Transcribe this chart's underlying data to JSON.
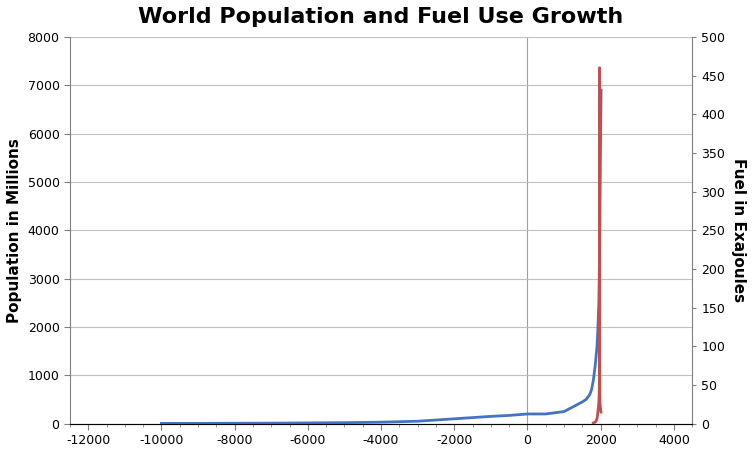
{
  "title": "World Population and Fuel Use Growth",
  "ylabel_left": "Population in Millions",
  "ylabel_right": "Fuel in Exajoules",
  "xlim": [
    -12500,
    4500
  ],
  "ylim_left": [
    0,
    8000
  ],
  "ylim_right": [
    0,
    500
  ],
  "xticks": [
    -12000,
    -10000,
    -8000,
    -6000,
    -4000,
    -2000,
    0,
    2000,
    4000
  ],
  "yticks_left": [
    0,
    1000,
    2000,
    3000,
    4000,
    5000,
    6000,
    7000,
    8000
  ],
  "yticks_right": [
    0,
    50,
    100,
    150,
    200,
    250,
    300,
    350,
    400,
    450,
    500
  ],
  "population_color": "#4472C4",
  "fuel_color": "#C0504D",
  "vline_x": 0,
  "vline_color": "#A0A0A0",
  "background_color": "#FFFFFF",
  "title_fontsize": 16,
  "population_data": {
    "years": [
      -10000,
      -9000,
      -8000,
      -7000,
      -6000,
      -5000,
      -4000,
      -3000,
      -2000,
      -1000,
      -500,
      0,
      500,
      1000,
      1500,
      1600,
      1700,
      1750,
      1800,
      1850,
      1900,
      1920,
      1940,
      1950,
      1960,
      1970,
      1980,
      1990,
      2000,
      2010
    ],
    "values": [
      5,
      5,
      8,
      10,
      15,
      20,
      30,
      50,
      100,
      150,
      170,
      200,
      200,
      250,
      450,
      500,
      600,
      700,
      900,
      1200,
      1600,
      1900,
      2300,
      2500,
      3000,
      3700,
      4400,
      5300,
      6100,
      6900
    ]
  },
  "fuel_data": {
    "years": [
      1800,
      1850,
      1870,
      1880,
      1890,
      1900,
      1910,
      1920,
      1930,
      1940,
      1950,
      1960,
      1965,
      1967,
      1968,
      1969,
      1970,
      1971,
      1972,
      1973,
      1974,
      1975,
      1980,
      1990,
      2000,
      2010
    ],
    "values": [
      1,
      2,
      3,
      4,
      5,
      7,
      10,
      14,
      18,
      22,
      28,
      40,
      60,
      100,
      160,
      280,
      460,
      280,
      160,
      100,
      60,
      40,
      28,
      22,
      18,
      15
    ]
  }
}
